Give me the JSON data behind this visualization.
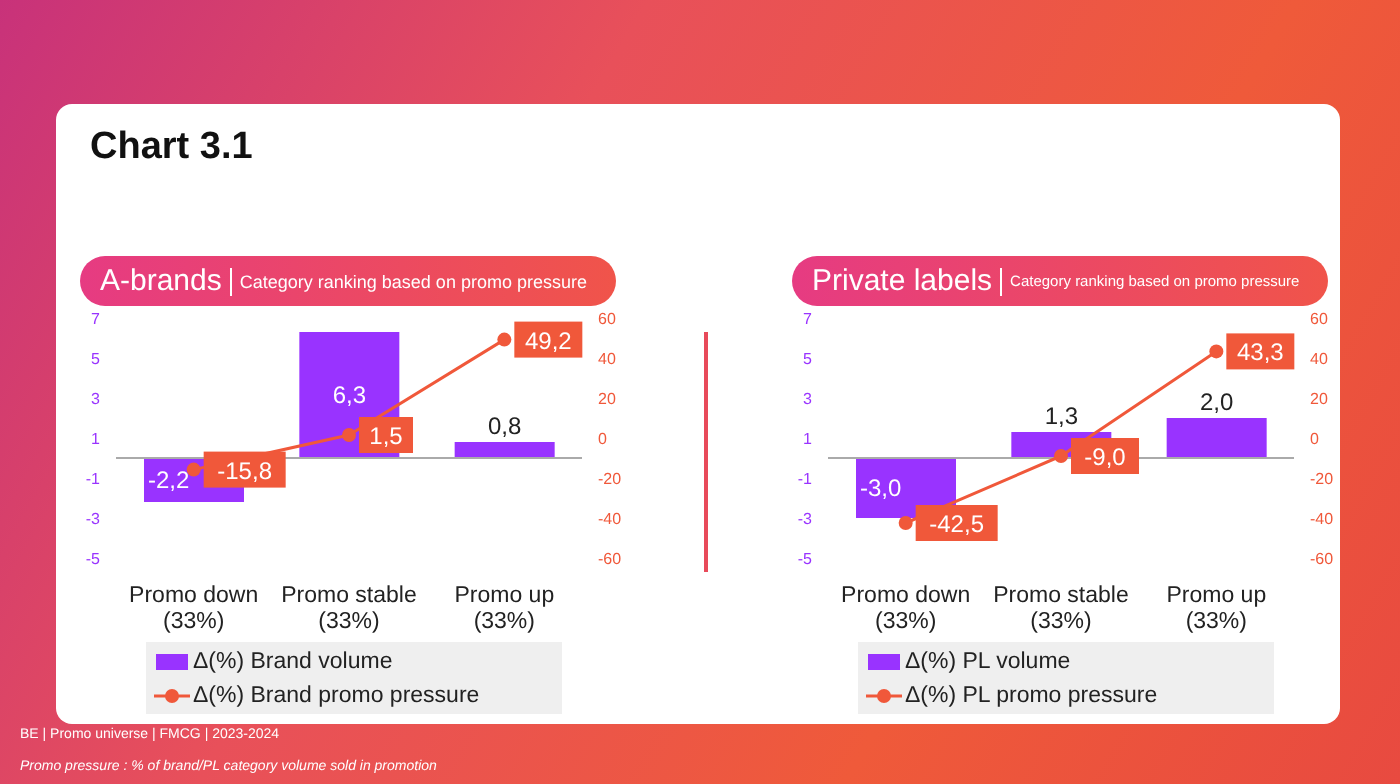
{
  "chart_data": [
    {
      "type": "bar",
      "title": "A-brands",
      "subtitle": "Category ranking based on promo pressure",
      "annotations": [
        "Chart 3.1",
        "BE | Promo universe | FMCG | 2023-2024",
        "Promo pressure : % of brand/PL category volume sold in promotion"
      ],
      "categories": [
        "Promo down (33%)",
        "Promo stable (33%)",
        "Promo up (33%)"
      ],
      "series": [
        {
          "name": "Δ(%) Brand volume",
          "type": "bar",
          "color": "#9933ff",
          "values": [
            -2.2,
            6.3,
            0.8
          ],
          "value_labels": [
            "-2,2",
            "6,3",
            "0,8"
          ]
        },
        {
          "name": "Δ(%) Brand promo pressure",
          "type": "line",
          "axis": "y2",
          "color": "#f0583a",
          "values": [
            -15.8,
            1.5,
            49.2
          ],
          "value_labels": [
            "-15,8",
            "1,5",
            "49,2"
          ]
        }
      ],
      "ylim": [
        -5,
        7
      ],
      "yticks": [
        -5,
        -3,
        -1,
        1,
        3,
        5,
        7
      ],
      "y2lim": [
        -60,
        60
      ],
      "y2ticks": [
        -60,
        -40,
        -20,
        0,
        20,
        40,
        60
      ],
      "ref_lines": [
        {
          "axis": "y",
          "value": 0,
          "color": "#aaaaaa"
        }
      ],
      "legend": "bottom",
      "marker": "circle"
    },
    {
      "type": "bar",
      "title": "Private labels",
      "subtitle": "Category ranking based on promo pressure",
      "categories": [
        "Promo down (33%)",
        "Promo stable (33%)",
        "Promo up (33%)"
      ],
      "series": [
        {
          "name": "Δ(%) PL volume",
          "type": "bar",
          "color": "#9933ff",
          "values": [
            -3.0,
            1.3,
            2.0
          ],
          "value_labels": [
            "-3,0",
            "1,3",
            "2,0"
          ]
        },
        {
          "name": "Δ(%) PL promo pressure",
          "type": "line",
          "axis": "y2",
          "color": "#f0583a",
          "values": [
            -42.5,
            -9.0,
            43.3
          ],
          "value_labels": [
            "-42,5",
            "-9,0",
            "43,3"
          ]
        }
      ],
      "ylim": [
        -5,
        7
      ],
      "yticks": [
        -5,
        -3,
        -1,
        1,
        3,
        5,
        7
      ],
      "y2lim": [
        -60,
        60
      ],
      "y2ticks": [
        -60,
        -40,
        -20,
        0,
        20,
        40,
        60
      ],
      "ref_lines": [
        {
          "axis": "y",
          "value": 0,
          "color": "#aaaaaa"
        }
      ],
      "legend": "bottom",
      "marker": "circle"
    }
  ]
}
